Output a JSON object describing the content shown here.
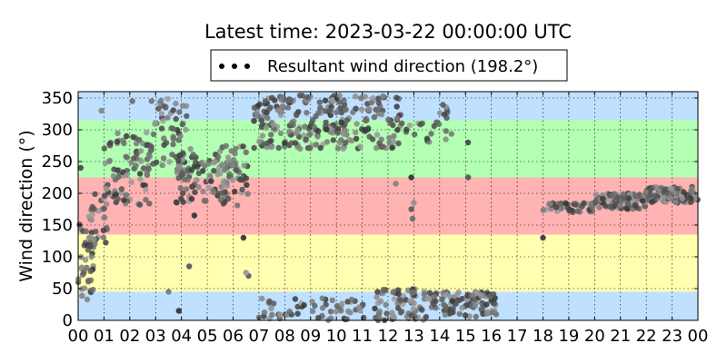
{
  "chart_data": {
    "type": "scatter",
    "title": "Latest time: 2023-03-22 00:00:00 UTC",
    "ylabel": "Wind direction (°)",
    "xlabel": "",
    "xlim": [
      0,
      24
    ],
    "ylim": [
      0,
      360
    ],
    "x_ticks": [
      "00",
      "01",
      "02",
      "03",
      "04",
      "05",
      "06",
      "07",
      "08",
      "09",
      "10",
      "11",
      "12",
      "13",
      "14",
      "15",
      "16",
      "17",
      "18",
      "19",
      "20",
      "21",
      "22",
      "23",
      "00"
    ],
    "y_ticks": [
      "0",
      "50",
      "100",
      "150",
      "200",
      "250",
      "300",
      "350"
    ],
    "grid": true,
    "legend": {
      "placement": "top-center",
      "entries": [
        {
          "label": "Resultant wind direction (198.2°)",
          "color": "#000000"
        }
      ]
    },
    "bands": [
      {
        "from": 0,
        "to": 45,
        "color": "#bfe0ff"
      },
      {
        "from": 45,
        "to": 135,
        "color": "#ffffb0"
      },
      {
        "from": 135,
        "to": 225,
        "color": "#ffb3b3"
      },
      {
        "from": 225,
        "to": 315,
        "color": "#b3ffb3"
      },
      {
        "from": 315,
        "to": 360,
        "color": "#bfe0ff"
      }
    ],
    "series": [
      {
        "name": "Resultant wind direction (198.2°)",
        "clusters": [
          {
            "x0": 0.0,
            "x1": 0.6,
            "y0": 20,
            "y1": 160,
            "n": 40
          },
          {
            "x0": 0.3,
            "x1": 1.3,
            "y0": 120,
            "y1": 200,
            "n": 25
          },
          {
            "x0": 1.0,
            "x1": 2.8,
            "y0": 180,
            "y1": 300,
            "n": 90
          },
          {
            "x0": 2.8,
            "x1": 4.2,
            "y0": 230,
            "y1": 350,
            "n": 60
          },
          {
            "x0": 3.8,
            "x1": 6.0,
            "y0": 185,
            "y1": 270,
            "n": 90
          },
          {
            "x0": 5.5,
            "x1": 6.6,
            "y0": 180,
            "y1": 280,
            "n": 40
          },
          {
            "x0": 6.8,
            "x1": 10.5,
            "y0": 270,
            "y1": 355,
            "n": 180
          },
          {
            "x0": 10.0,
            "x1": 12.5,
            "y0": 270,
            "y1": 355,
            "n": 90
          },
          {
            "x0": 12.5,
            "x1": 14.5,
            "y0": 280,
            "y1": 340,
            "n": 25
          },
          {
            "x0": 7.0,
            "x1": 11.5,
            "y0": 0,
            "y1": 35,
            "n": 60
          },
          {
            "x0": 11.5,
            "x1": 13.5,
            "y0": 0,
            "y1": 50,
            "n": 70
          },
          {
            "x0": 13.5,
            "x1": 16.2,
            "y0": 5,
            "y1": 45,
            "n": 110
          },
          {
            "x0": 18.0,
            "x1": 20.0,
            "y0": 170,
            "y1": 185,
            "n": 40
          },
          {
            "x0": 20.0,
            "x1": 22.0,
            "y0": 175,
            "y1": 200,
            "n": 90
          },
          {
            "x0": 22.0,
            "x1": 24.0,
            "y0": 185,
            "y1": 210,
            "n": 110
          }
        ],
        "points": [
          {
            "x": 0.1,
            "y": 240
          },
          {
            "x": 0.9,
            "y": 330
          },
          {
            "x": 2.1,
            "y": 345
          },
          {
            "x": 3.5,
            "y": 45
          },
          {
            "x": 3.9,
            "y": 15
          },
          {
            "x": 4.3,
            "y": 85
          },
          {
            "x": 4.5,
            "y": 165
          },
          {
            "x": 6.4,
            "y": 130
          },
          {
            "x": 6.6,
            "y": 70
          },
          {
            "x": 6.5,
            "y": 75
          },
          {
            "x": 12.9,
            "y": 175
          },
          {
            "x": 12.95,
            "y": 160
          },
          {
            "x": 13.0,
            "y": 185
          },
          {
            "x": 12.9,
            "y": 225
          },
          {
            "x": 15.1,
            "y": 225
          },
          {
            "x": 15.1,
            "y": 280
          },
          {
            "x": 18.0,
            "y": 130
          },
          {
            "x": 12.3,
            "y": 215
          }
        ]
      }
    ]
  }
}
